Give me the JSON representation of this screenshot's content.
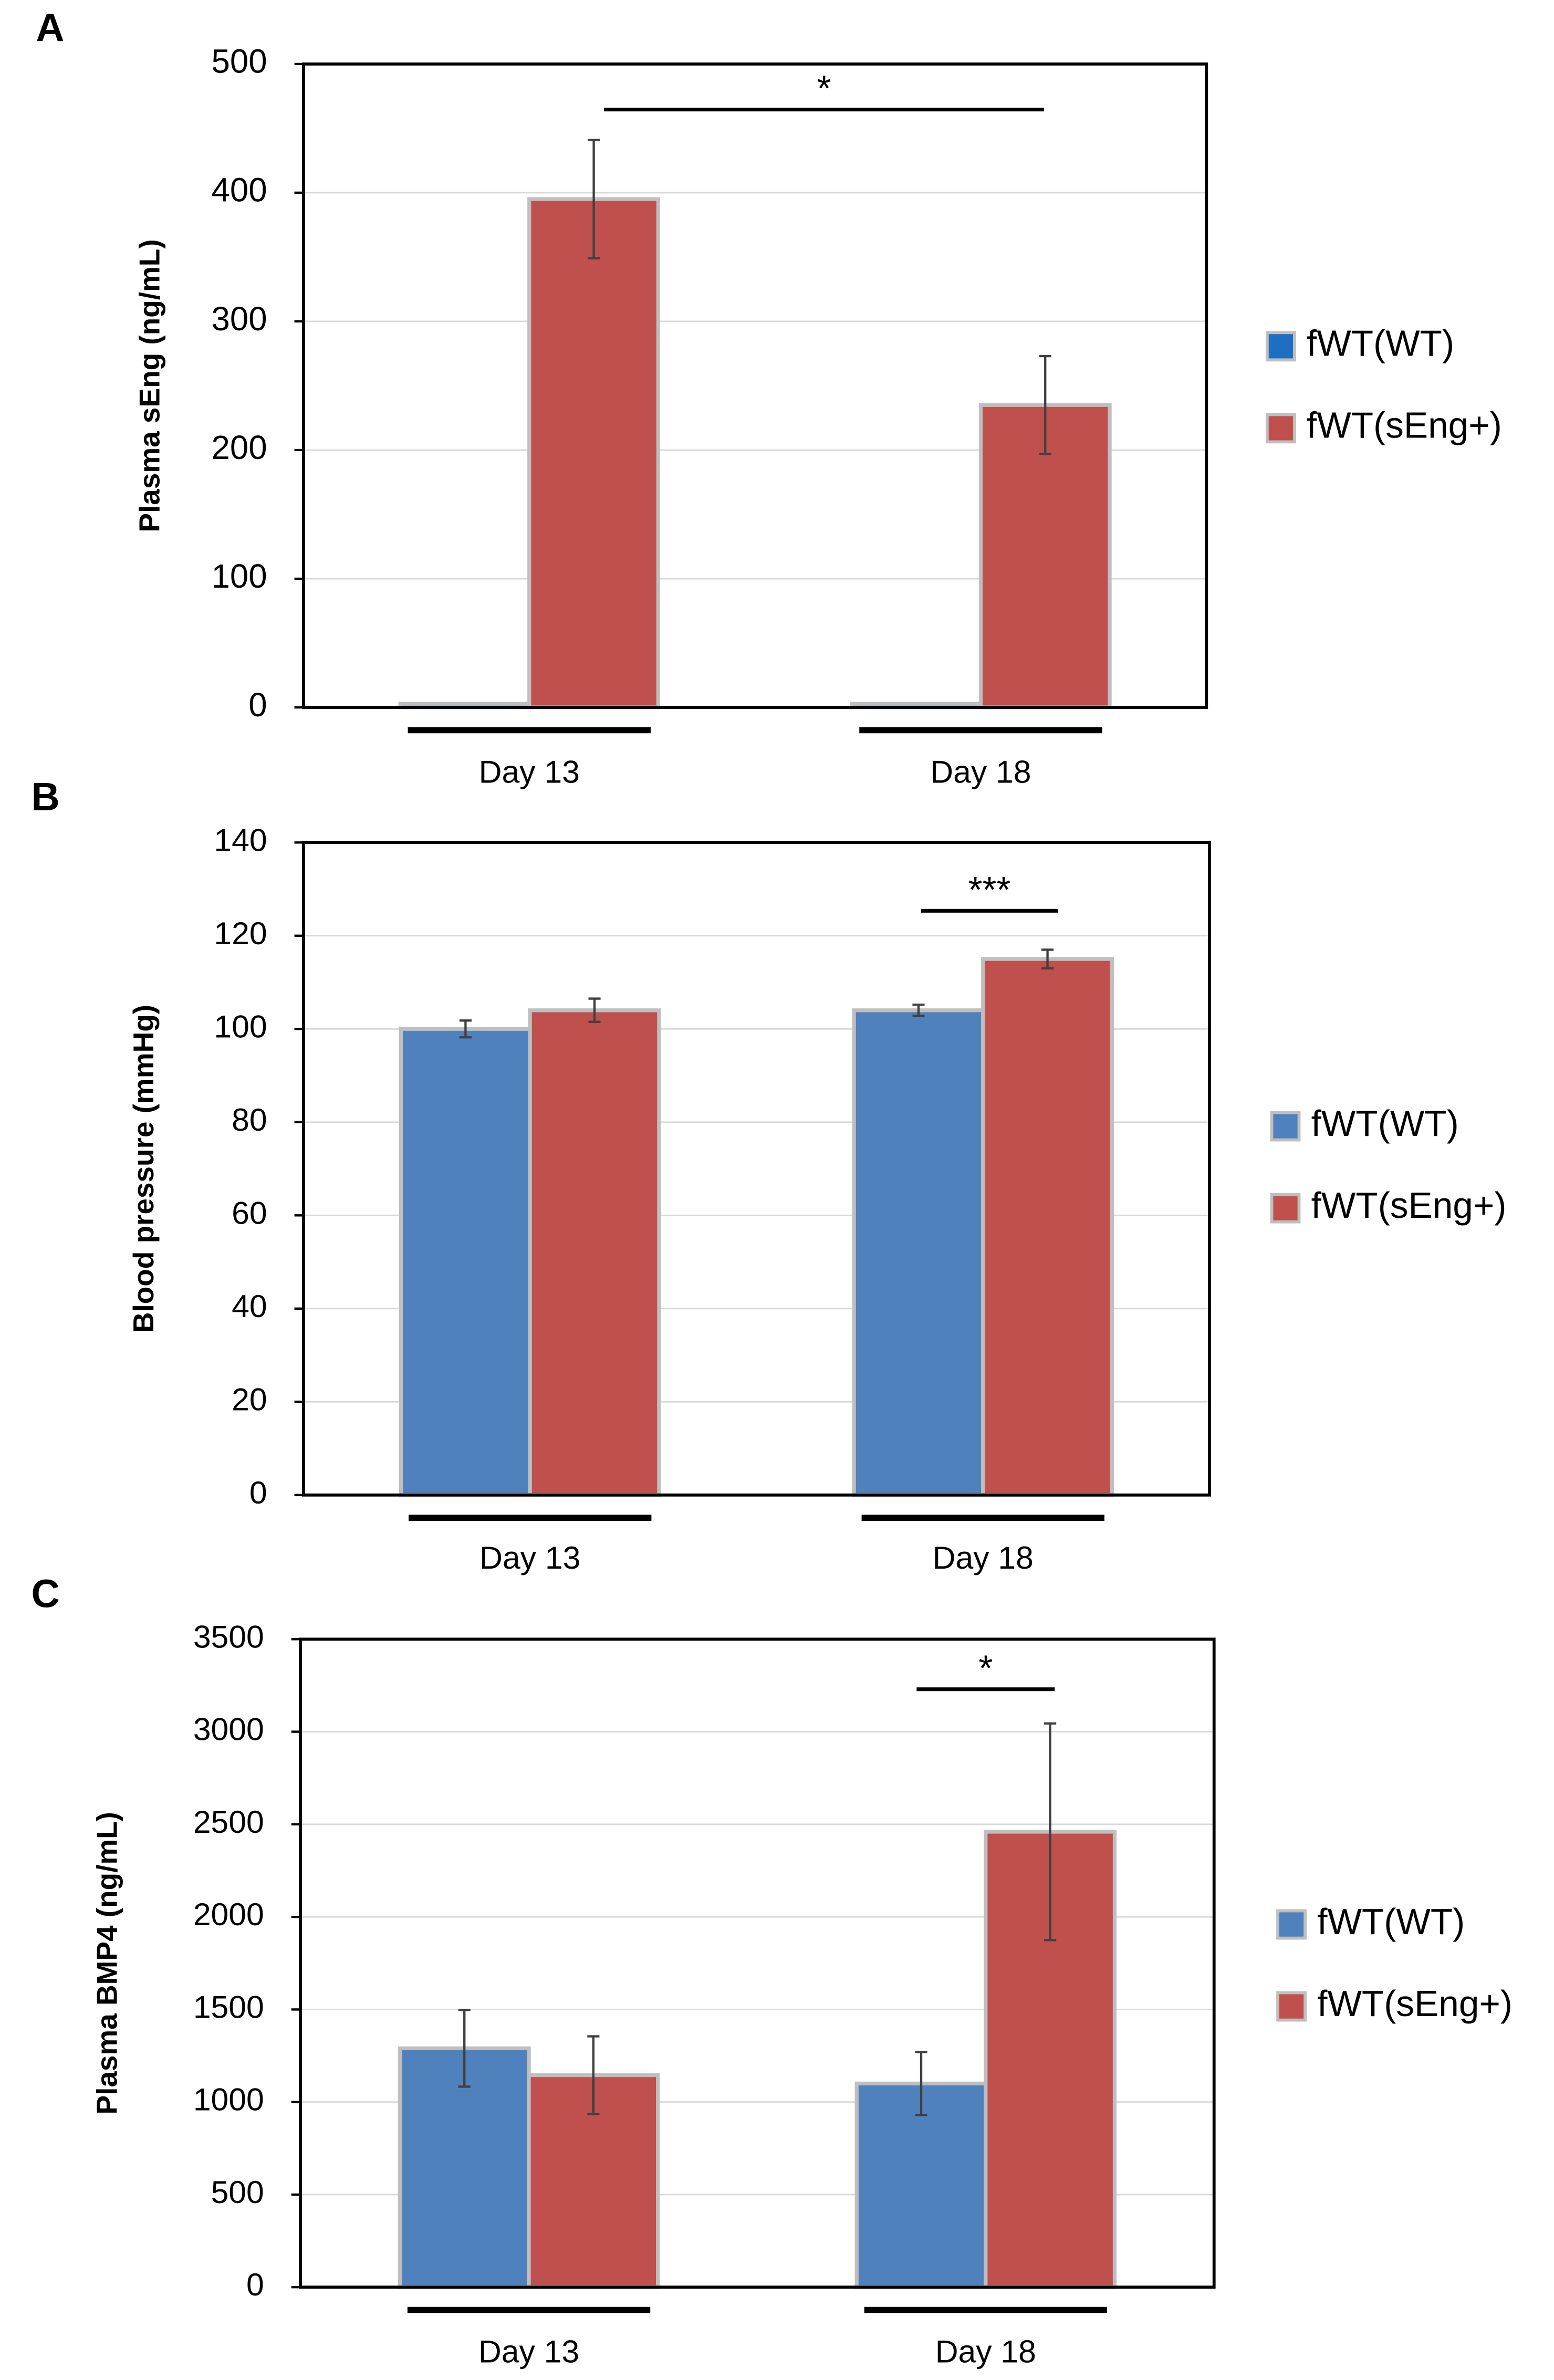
{
  "chart_data": [
    {
      "type": "bar",
      "panel": "A",
      "y_label": "Plasma sEng (ng/mL)",
      "categories": [
        "Day 13",
        "Day 18"
      ],
      "series": [
        {
          "name": "fWT(WT)",
          "color": "#1f6fc0",
          "values": [
            3,
            3
          ],
          "errors": [
            null,
            null
          ]
        },
        {
          "name": "fWT(sEng+)",
          "color": "#c0504d",
          "values": [
            395,
            235
          ],
          "errors": [
            46,
            38
          ]
        }
      ],
      "ylim": [
        0,
        500
      ],
      "yticks": [
        0,
        100,
        200,
        300,
        400,
        500
      ],
      "grid": true,
      "legend": "right",
      "annotations": [
        {
          "text": "*"
        }
      ]
    },
    {
      "type": "bar",
      "panel": "B",
      "y_label": "Blood pressure (mmHg)",
      "categories": [
        "Day 13",
        "Day 18"
      ],
      "series": [
        {
          "name": "fWT(WT)",
          "color": "#4f81bd",
          "values": [
            100,
            104
          ],
          "errors": [
            1.8,
            1.2
          ]
        },
        {
          "name": "fWT(sEng+)",
          "color": "#c0504d",
          "values": [
            104,
            115
          ],
          "errors": [
            2.5,
            2
          ]
        }
      ],
      "ylim": [
        0,
        140
      ],
      "yticks": [
        0,
        20,
        40,
        60,
        80,
        100,
        120,
        140
      ],
      "grid": true,
      "legend": "right",
      "annotations": [
        {
          "text": "***"
        }
      ]
    },
    {
      "type": "bar",
      "panel": "C",
      "y_label": "Plasma BMP4 (ng/mL)",
      "categories": [
        "Day 13",
        "Day 18"
      ],
      "series": [
        {
          "name": "fWT(WT)",
          "color": "#4f81bd",
          "values": [
            1290,
            1100
          ],
          "errors": [
            207,
            170
          ]
        },
        {
          "name": "fWT(sEng+)",
          "color": "#c0504d",
          "values": [
            1145,
            2460
          ],
          "errors": [
            210,
            585
          ]
        }
      ],
      "ylim": [
        0,
        3500
      ],
      "yticks": [
        0,
        500,
        1000,
        1500,
        2000,
        2500,
        3000,
        3500
      ],
      "grid": true,
      "legend": "right",
      "annotations": [
        {
          "text": "*"
        }
      ]
    }
  ]
}
